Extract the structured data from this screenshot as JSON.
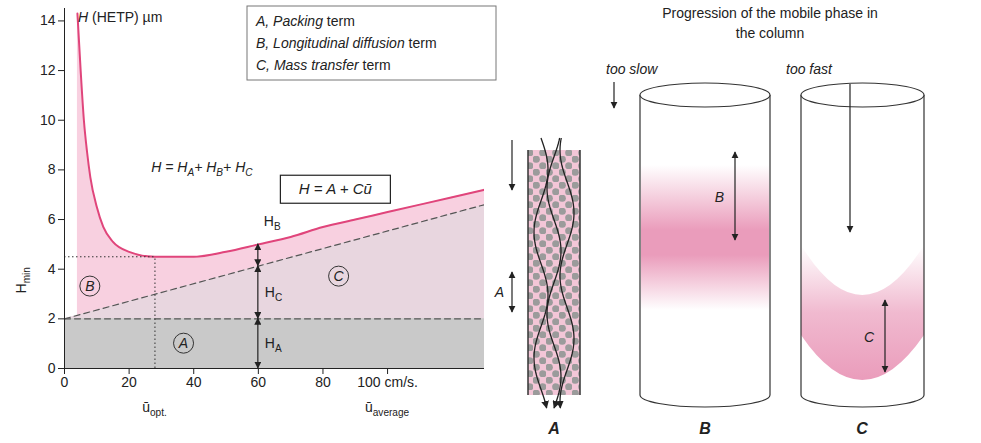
{
  "chart_data": {
    "type": "line",
    "y_label": "H (HETP) µm",
    "xlim": [
      0,
      130
    ],
    "ylim": [
      0,
      14.5
    ],
    "xticks": [
      0,
      20,
      40,
      60,
      80,
      {
        "value": 100,
        "label": "100 cm/s."
      }
    ],
    "yticks": [
      0,
      2,
      4,
      6,
      8,
      10,
      12,
      14
    ],
    "series": [
      {
        "name": "B",
        "color": "#e0457b",
        "line_style": "solid",
        "x": [
          4,
          5,
          6,
          7,
          8,
          10,
          12,
          15,
          20,
          28,
          40,
          50,
          60,
          70,
          80,
          90,
          100,
          110,
          120,
          130
        ],
        "values": [
          14.3,
          12,
          10,
          8.7,
          7.7,
          6.5,
          5.7,
          5.1,
          4.7,
          4.5,
          4.5,
          4.7,
          5.0,
          5.3,
          5.7,
          6.0,
          6.3,
          6.6,
          6.9,
          7.2
        ]
      },
      {
        "name": "C",
        "color": "#555555",
        "line_style": "dashed",
        "x": [
          0,
          130
        ],
        "values": [
          2,
          6.6
        ]
      },
      {
        "name": "A",
        "color": "#555555",
        "line_style": "dashed",
        "x": [
          0,
          130
        ],
        "values": [
          2,
          2
        ]
      }
    ],
    "optimum": {
      "x": 28,
      "y": 4.5
    },
    "annotations": {
      "terms": [
        "A, Packing term",
        "B, Longitudinal diffusion term",
        "C, Mass transfer term"
      ],
      "formula": [
        {
          "base": "H = H",
          "sub": "A"
        },
        {
          "base": "+ H",
          "sub": "B"
        },
        {
          "base": "+ H",
          "sub": "C"
        }
      ],
      "model": "H = A + Cū",
      "components": [
        {
          "base": "H",
          "sub": "A"
        },
        {
          "base": "H",
          "sub": "B"
        },
        {
          "base": "H",
          "sub": "C"
        }
      ],
      "h_min": {
        "base": "H",
        "sub": "min"
      },
      "u_opt": {
        "base": "ū",
        "sub": "opt."
      },
      "u_average": {
        "base": "ū",
        "sub": "average"
      }
    }
  },
  "diagram": {
    "title": "Progression of the mobile phase in the column",
    "panels": [
      {
        "label": "A",
        "arrow_label": "A"
      },
      {
        "label": "B",
        "caption": "too slow",
        "arrow_label": "B"
      },
      {
        "label": "C",
        "caption": "too fast",
        "arrow_label": "C"
      }
    ]
  }
}
